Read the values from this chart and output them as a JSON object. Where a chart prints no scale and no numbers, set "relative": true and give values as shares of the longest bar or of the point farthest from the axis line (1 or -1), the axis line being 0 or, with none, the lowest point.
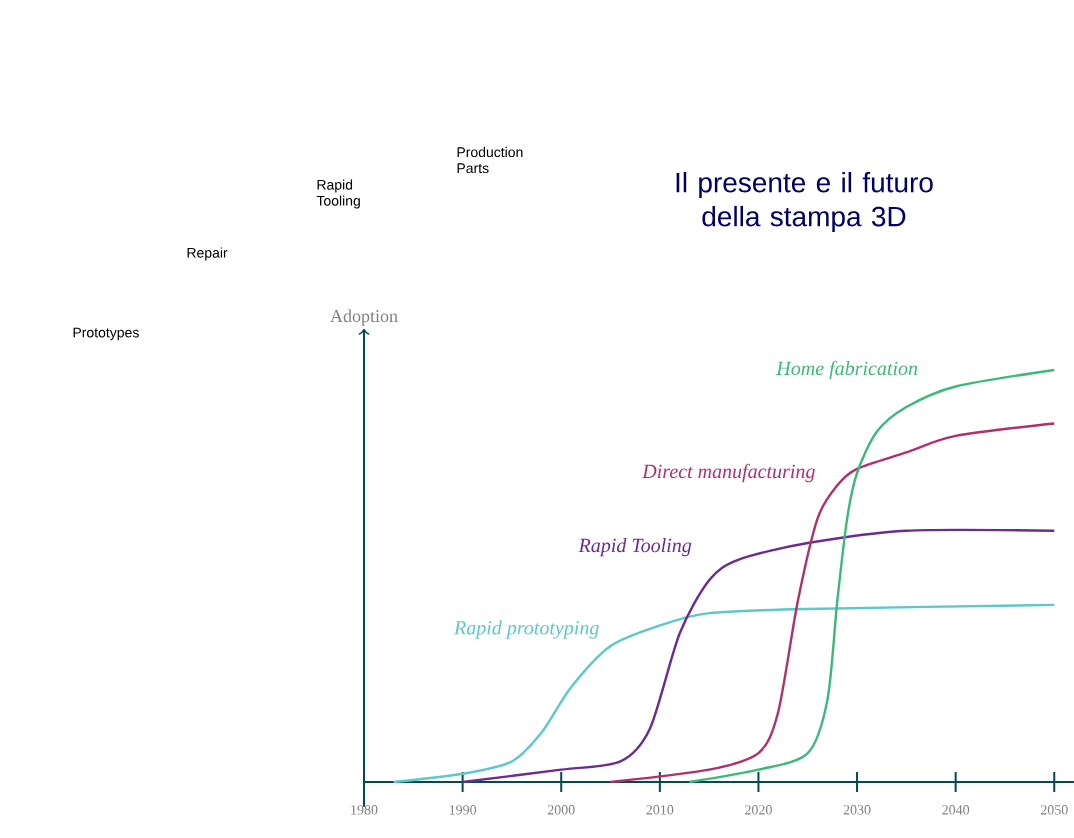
{
  "chart_data": {
    "type": "line",
    "title": "Il presente e il futuro della stampa 3D",
    "ylabel": "Adoption",
    "relative": true,
    "xlim": [
      1980,
      2052
    ],
    "xticks": [
      1980,
      1990,
      2000,
      2010,
      2020,
      2030,
      2040,
      2050
    ],
    "annotations": [
      "Prototypes",
      "Repair",
      "Rapid Tooling",
      "Production Parts"
    ],
    "series": [
      {
        "name": "Rapid prototyping",
        "color": "#5cc8c8",
        "x": [
          1983,
          1990,
          1995,
          1998,
          2001,
          2005,
          2010,
          2015,
          2025,
          2050
        ],
        "values": [
          0,
          0.02,
          0.05,
          0.12,
          0.23,
          0.33,
          0.38,
          0.41,
          0.42,
          0.43
        ]
      },
      {
        "name": "Rapid Tooling",
        "color": "#6a2c90",
        "x": [
          1990,
          2000,
          2006,
          2009,
          2012,
          2015,
          2018,
          2025,
          2035,
          2050
        ],
        "values": [
          0,
          0.03,
          0.05,
          0.13,
          0.36,
          0.49,
          0.54,
          0.58,
          0.61,
          0.61
        ]
      },
      {
        "name": "Direct manufacturing",
        "color": "#b0306a",
        "x": [
          2005,
          2015,
          2020,
          2022,
          2024,
          2026,
          2028,
          2030,
          2035,
          2040,
          2050
        ],
        "values": [
          0,
          0.03,
          0.07,
          0.17,
          0.44,
          0.64,
          0.72,
          0.76,
          0.8,
          0.84,
          0.87
        ]
      },
      {
        "name": "Home fabrication",
        "color": "#3cb878",
        "x": [
          2013,
          2020,
          2025,
          2027,
          2028,
          2029,
          2030,
          2032,
          2035,
          2040,
          2050
        ],
        "values": [
          0,
          0.03,
          0.07,
          0.2,
          0.44,
          0.64,
          0.75,
          0.85,
          0.91,
          0.96,
          1
        ]
      }
    ],
    "grid": false,
    "marker": "none",
    "line_style": "solid"
  }
}
